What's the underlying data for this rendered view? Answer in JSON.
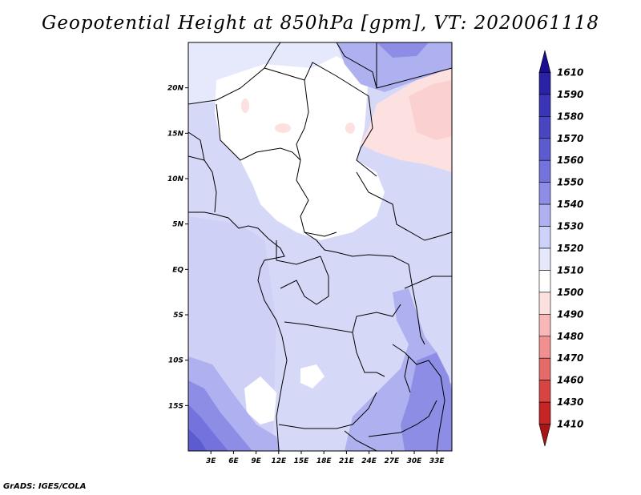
{
  "title": "Geopotential Height at 850hPa [gpm], VT: 2020061118",
  "credit": "GrADS: IGES/COLA",
  "map": {
    "lon_labels": [
      "3E",
      "6E",
      "9E",
      "12E",
      "15E",
      "18E",
      "21E",
      "24E",
      "27E",
      "30E",
      "33E"
    ],
    "lat_labels": [
      "20N",
      "15N",
      "10N",
      "5N",
      "EQ",
      "5S",
      "10S",
      "15S"
    ],
    "lon_values": [
      3,
      6,
      9,
      12,
      15,
      18,
      21,
      24,
      27,
      30,
      33
    ],
    "lat_values": [
      20,
      15,
      10,
      5,
      0,
      -5,
      -10,
      -15
    ],
    "extent": {
      "lon_min": 0,
      "lon_max": 35,
      "lat_min": -20,
      "lat_max": 25
    }
  },
  "colorbar": {
    "levels": [
      "1610",
      "1590",
      "1580",
      "1570",
      "1560",
      "1550",
      "1540",
      "1530",
      "1520",
      "1510",
      "1500",
      "1490",
      "1480",
      "1470",
      "1460",
      "1430",
      "1410"
    ],
    "colors": [
      "#1a0d8f",
      "#2a22a6",
      "#3a34b6",
      "#4a46c2",
      "#5c5bcf",
      "#7472dc",
      "#8e8de6",
      "#aeb0ef",
      "#cfd2f8",
      "#e6e8fc",
      "#ffffff",
      "#fde0e0",
      "#f8b8b8",
      "#f09090",
      "#e56a6a",
      "#d84444",
      "#c52525",
      "#a81515"
    ]
  }
}
